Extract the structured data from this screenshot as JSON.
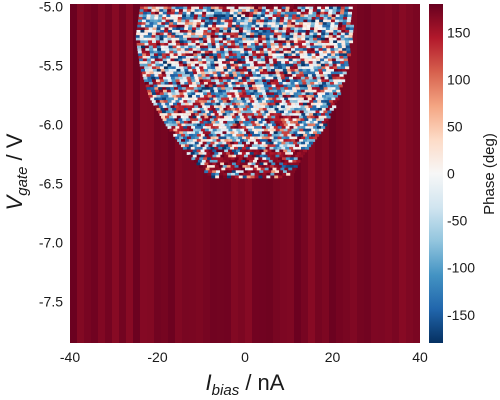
{
  "chart_data": {
    "type": "heatmap",
    "title": "",
    "xlabel": {
      "symbol": "I",
      "subscript": "bias",
      "unit": " / nA"
    },
    "ylabel": {
      "symbol": "V",
      "subscript": "gate",
      "unit": " / V"
    },
    "xlim": [
      -40,
      40
    ],
    "ylim": [
      -7.85,
      -4.98
    ],
    "xticks": [
      -40,
      -20,
      0,
      20,
      40
    ],
    "xtick_labels": [
      "-40",
      "-20",
      "0",
      "20",
      "40"
    ],
    "yticks": [
      -5.0,
      -5.5,
      -6.0,
      -6.5,
      -7.0,
      -7.5
    ],
    "ytick_labels": [
      "-5.0",
      "-5.5",
      "-6.0",
      "-6.5",
      "-7.0",
      "-7.5"
    ],
    "colorbar": {
      "label": "Phase (deg)",
      "range": [
        -180,
        180
      ],
      "ticks": [
        150,
        100,
        50,
        0,
        -50,
        -100,
        -150
      ],
      "tick_labels": [
        "150",
        "100",
        "50",
        "0",
        "-50",
        "-100",
        "-150"
      ],
      "colormap": "RdBu_r",
      "colors": [
        "#053061",
        "#2166ac",
        "#4393c3",
        "#92c5de",
        "#d1e5f0",
        "#f7f7f7",
        "#fddbc7",
        "#f4a582",
        "#d6604d",
        "#b2182b",
        "#67001f"
      ]
    },
    "background_phase": 178,
    "noisy_region": [
      {
        "v": -5.0,
        "i_min": -24,
        "i_max": 24
      },
      {
        "v": -5.25,
        "i_min": -25,
        "i_max": 24
      },
      {
        "v": -5.5,
        "i_min": -24,
        "i_max": 23
      },
      {
        "v": -5.75,
        "i_min": -22,
        "i_max": 21
      },
      {
        "v": -6.0,
        "i_min": -18,
        "i_max": 18
      },
      {
        "v": -6.25,
        "i_min": -13,
        "i_max": 13
      },
      {
        "v": -6.4,
        "i_min": -9,
        "i_max": 11
      },
      {
        "v": -6.45,
        "i_min": -7,
        "i_max": 7
      }
    ]
  }
}
